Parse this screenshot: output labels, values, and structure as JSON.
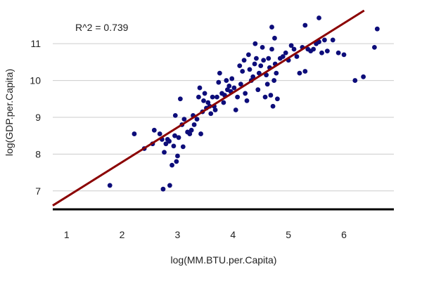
{
  "chart_data": {
    "type": "scatter",
    "title": "",
    "xlabel": "log(MM.BTU.per.Capita)",
    "ylabel": "log(GDP.per.Capita)",
    "annotation": "R^2 =  0.739",
    "xlim": [
      0.75,
      6.9
    ],
    "ylim": [
      6.5,
      11.9
    ],
    "x_ticks": [
      "1",
      "2",
      "3",
      "4",
      "5",
      "6"
    ],
    "y_ticks": [
      "7",
      "8",
      "9",
      "10",
      "11"
    ],
    "grid": "horizontal",
    "colors": {
      "points": "#0d0d7a",
      "fit_line": "#8b0000",
      "baseline": "#000000",
      "grid": "#cccccc"
    },
    "fit_line": {
      "intercept": 5.896,
      "slope": 0.9434
    },
    "points": [
      [
        1.78,
        7.15
      ],
      [
        2.22,
        8.55
      ],
      [
        2.4,
        8.15
      ],
      [
        2.55,
        8.28
      ],
      [
        2.58,
        8.65
      ],
      [
        2.68,
        8.55
      ],
      [
        2.72,
        8.4
      ],
      [
        2.74,
        7.05
      ],
      [
        2.76,
        8.05
      ],
      [
        2.79,
        8.28
      ],
      [
        2.82,
        8.4
      ],
      [
        2.85,
        8.35
      ],
      [
        2.86,
        7.15
      ],
      [
        2.9,
        7.7
      ],
      [
        2.93,
        8.22
      ],
      [
        2.95,
        8.5
      ],
      [
        2.96,
        9.05
      ],
      [
        2.98,
        7.8
      ],
      [
        3.0,
        7.95
      ],
      [
        3.02,
        8.45
      ],
      [
        3.05,
        9.5
      ],
      [
        3.08,
        8.8
      ],
      [
        3.1,
        8.2
      ],
      [
        3.12,
        8.95
      ],
      [
        3.18,
        8.6
      ],
      [
        3.22,
        8.55
      ],
      [
        3.25,
        8.65
      ],
      [
        3.28,
        9.05
      ],
      [
        3.3,
        8.8
      ],
      [
        3.35,
        8.95
      ],
      [
        3.38,
        9.55
      ],
      [
        3.4,
        9.8
      ],
      [
        3.42,
        8.55
      ],
      [
        3.45,
        9.15
      ],
      [
        3.47,
        9.45
      ],
      [
        3.49,
        9.65
      ],
      [
        3.52,
        9.25
      ],
      [
        3.55,
        9.4
      ],
      [
        3.58,
        9.3
      ],
      [
        3.6,
        9.1
      ],
      [
        3.63,
        9.55
      ],
      [
        3.66,
        9.3
      ],
      [
        3.68,
        9.2
      ],
      [
        3.71,
        9.55
      ],
      [
        3.74,
        9.95
      ],
      [
        3.76,
        10.2
      ],
      [
        3.8,
        9.65
      ],
      [
        3.83,
        9.4
      ],
      [
        3.85,
        9.6
      ],
      [
        3.88,
        10.0
      ],
      [
        3.9,
        9.75
      ],
      [
        3.93,
        9.85
      ],
      [
        3.96,
        9.7
      ],
      [
        3.98,
        10.05
      ],
      [
        4.02,
        9.8
      ],
      [
        4.05,
        9.2
      ],
      [
        4.08,
        9.55
      ],
      [
        4.12,
        10.4
      ],
      [
        4.14,
        9.9
      ],
      [
        4.17,
        10.25
      ],
      [
        4.2,
        10.55
      ],
      [
        4.22,
        9.65
      ],
      [
        4.25,
        9.45
      ],
      [
        4.28,
        10.7
      ],
      [
        4.3,
        10.3
      ],
      [
        4.33,
        10.0
      ],
      [
        4.36,
        10.1
      ],
      [
        4.39,
        10.45
      ],
      [
        4.42,
        10.6
      ],
      [
        4.45,
        9.75
      ],
      [
        4.47,
        10.2
      ],
      [
        4.5,
        10.4
      ],
      [
        4.53,
        10.9
      ],
      [
        4.55,
        10.55
      ],
      [
        4.58,
        9.55
      ],
      [
        4.6,
        10.15
      ],
      [
        4.62,
        9.9
      ],
      [
        4.64,
        10.6
      ],
      [
        4.66,
        10.35
      ],
      [
        4.68,
        9.6
      ],
      [
        4.7,
        10.85
      ],
      [
        4.72,
        9.3
      ],
      [
        4.74,
        10.0
      ],
      [
        4.76,
        10.45
      ],
      [
        4.78,
        10.2
      ],
      [
        4.8,
        9.5
      ],
      [
        4.85,
        10.6
      ],
      [
        4.9,
        10.65
      ],
      [
        4.95,
        10.75
      ],
      [
        5.0,
        10.55
      ],
      [
        5.05,
        10.95
      ],
      [
        5.1,
        10.85
      ],
      [
        5.15,
        10.65
      ],
      [
        5.2,
        10.2
      ],
      [
        5.25,
        10.9
      ],
      [
        5.3,
        10.25
      ],
      [
        5.35,
        10.85
      ],
      [
        5.4,
        10.8
      ],
      [
        5.45,
        10.85
      ],
      [
        5.5,
        11.0
      ],
      [
        5.55,
        11.05
      ],
      [
        5.6,
        10.75
      ],
      [
        5.65,
        11.1
      ],
      [
        5.7,
        10.8
      ],
      [
        5.8,
        11.1
      ],
      [
        5.9,
        10.75
      ],
      [
        6.0,
        10.7
      ],
      [
        6.2,
        10.0
      ],
      [
        6.35,
        10.1
      ],
      [
        6.55,
        10.9
      ],
      [
        6.6,
        11.4
      ],
      [
        4.4,
        11.0
      ],
      [
        4.7,
        11.45
      ],
      [
        4.75,
        11.15
      ],
      [
        5.3,
        11.5
      ],
      [
        5.55,
        11.7
      ]
    ]
  }
}
